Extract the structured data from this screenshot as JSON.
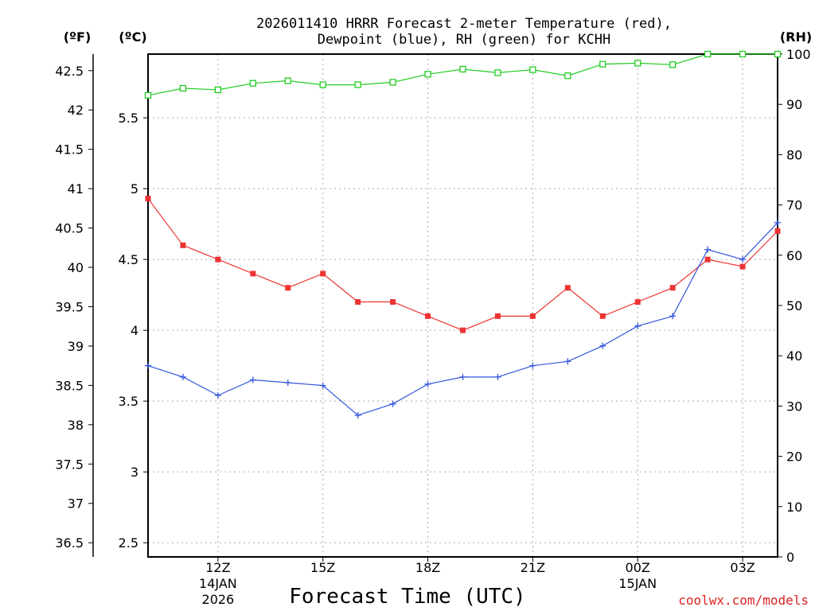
{
  "chart_data": {
    "type": "line",
    "title_line1": "2026011410 HRRR Forecast 2-meter Temperature (red),",
    "title_line2": "Dewpoint (blue), RH (green) for KCHH",
    "xlabel": "Forecast Time (UTC)",
    "credit": "coolwx.com/models",
    "unit_left_outer": "(ºF)",
    "unit_left_inner": "(ºC)",
    "unit_right": "(RH)",
    "x_hours": [
      10,
      11,
      12,
      13,
      14,
      15,
      16,
      17,
      18,
      19,
      20,
      21,
      22,
      23,
      24,
      25,
      26,
      27,
      28
    ],
    "xlim": [
      10,
      28
    ],
    "x_ticks": [
      {
        "hour": 12,
        "line1": "12Z",
        "line2": "14JAN",
        "line3": "2026"
      },
      {
        "hour": 15,
        "line1": "15Z",
        "line2": "",
        "line3": ""
      },
      {
        "hour": 18,
        "line1": "18Z",
        "line2": "",
        "line3": ""
      },
      {
        "hour": 21,
        "line1": "21Z",
        "line2": "",
        "line3": ""
      },
      {
        "hour": 24,
        "line1": "00Z",
        "line2": "15JAN",
        "line3": ""
      },
      {
        "hour": 27,
        "line1": "03Z",
        "line2": "",
        "line3": ""
      }
    ],
    "celsius_axis": {
      "ylim": [
        2.4,
        5.95
      ],
      "ticks": [
        "2.5",
        "3",
        "3.5",
        "4",
        "4.5",
        "5",
        "5.5"
      ]
    },
    "fahrenheit_ticks": [
      "36.5",
      "37",
      "37.5",
      "38",
      "38.5",
      "39",
      "39.5",
      "40",
      "40.5",
      "41",
      "41.5",
      "42",
      "42.5"
    ],
    "rh_axis": {
      "ylim": [
        0,
        100
      ],
      "ticks": [
        "0",
        "10",
        "20",
        "30",
        "40",
        "50",
        "60",
        "70",
        "80",
        "90",
        "100"
      ]
    },
    "series": [
      {
        "name": "Temperature",
        "unit": "C",
        "color": "#ee3333",
        "marker": "filled-square",
        "values": [
          4.93,
          4.6,
          4.5,
          4.4,
          4.3,
          4.4,
          4.2,
          4.2,
          4.1,
          4.0,
          4.1,
          4.1,
          4.3,
          4.1,
          4.2,
          4.3,
          4.5,
          4.45,
          4.7
        ]
      },
      {
        "name": "Dewpoint",
        "unit": "C",
        "color": "#3355dd",
        "marker": "plus",
        "values": [
          3.75,
          3.67,
          3.54,
          3.65,
          3.63,
          3.61,
          3.4,
          3.48,
          3.62,
          3.67,
          3.67,
          3.75,
          3.78,
          3.89,
          4.03,
          4.1,
          4.57,
          4.5,
          4.76
        ]
      },
      {
        "name": "RH",
        "unit": "%",
        "color": "#22cc22",
        "marker": "open-square",
        "values": [
          91.8,
          93.2,
          92.9,
          94.2,
          94.7,
          93.9,
          93.9,
          94.4,
          96.0,
          97.0,
          96.3,
          96.9,
          95.7,
          98.0,
          98.2,
          97.9,
          100,
          100,
          100
        ]
      }
    ]
  }
}
